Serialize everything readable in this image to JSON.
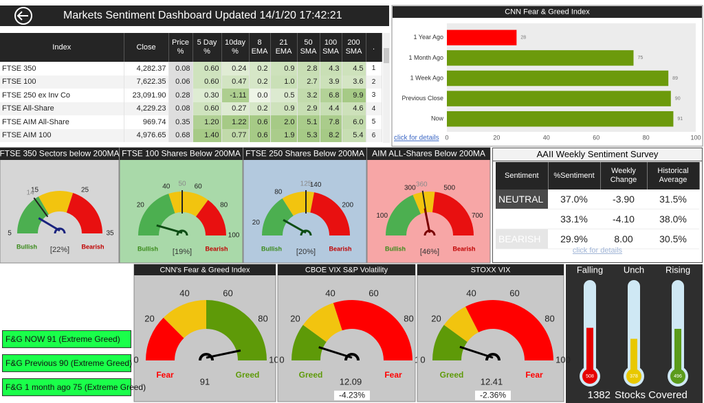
{
  "header": {
    "title": "Markets Sentiment Dashboard Updated  14/1/20 17:42:21"
  },
  "table": {
    "columns": [
      "Index",
      "Close",
      "Price %",
      "5 Day %",
      "10day %",
      "8 EMA",
      "21 EMA",
      "50 SMA",
      "100 SMA",
      "200 SMA",
      "."
    ],
    "rows": [
      [
        "FTSE 350",
        "4,282.37",
        "0.08",
        "0.60",
        "0.24",
        "0.2",
        "0.9",
        "2.8",
        "4.3",
        "4.5",
        "1"
      ],
      [
        "FTSE 100",
        "7,622.35",
        "0.06",
        "0.60",
        "0.47",
        "0.2",
        "1.0",
        "2.7",
        "3.9",
        "3.6",
        "2"
      ],
      [
        "FTSE 250 ex Inv Co",
        "23,091.90",
        "0.28",
        "0.30",
        "-1.11",
        "0.0",
        "0.5",
        "3.2",
        "6.8",
        "9.9",
        "3"
      ],
      [
        "FTSE All-Share",
        "4,229.23",
        "0.08",
        "0.60",
        "0.27",
        "0.2",
        "0.9",
        "2.9",
        "4.4",
        "4.6",
        "4"
      ],
      [
        "FTSE AIM All-Share",
        "969.74",
        "0.35",
        "1.20",
        "1.22",
        "0.6",
        "2.0",
        "5.1",
        "7.8",
        "6.0",
        "5"
      ],
      [
        "FTSE AIM 100",
        "4,976.65",
        "0.68",
        "1.40",
        "0.77",
        "0.6",
        "1.9",
        "5.3",
        "8.2",
        "5.4",
        "6"
      ]
    ]
  },
  "chart_data": [
    {
      "type": "bar",
      "title": "CNN Fear & Greed Index",
      "categories": [
        "1 Year Ago",
        "1 Month Ago",
        "1 Week Ago",
        "Previous Close",
        "Now"
      ],
      "values": [
        28,
        75,
        89,
        90,
        91
      ],
      "colors": [
        "#ff0000",
        "#6c9a0c",
        "#6c9a0c",
        "#6c9a0c",
        "#6c9a0c"
      ],
      "xlim": [
        0,
        100
      ],
      "xticks": [
        0,
        20,
        40,
        60,
        80,
        100
      ],
      "link": "click for details"
    },
    {
      "type": "gauge",
      "title": "FTSE 350 Sectors below 200MA",
      "ylim": [
        5,
        35
      ],
      "ticks": [
        5,
        15,
        25,
        35
      ],
      "value": 11,
      "target": 14,
      "bands": [
        {
          "to": 15,
          "color": "#4caf50"
        },
        {
          "to": 23,
          "color": "#f2c40f"
        },
        {
          "to": 35,
          "color": "#e81010"
        }
      ],
      "needle_color": "#1a237e",
      "low_label": "Bullish",
      "high_label": "Bearish",
      "note": "[22%]"
    },
    {
      "type": "gauge",
      "title": "FTSE 100  Shares Below 200MA",
      "ylim": [
        0,
        100
      ],
      "ticks": [
        20,
        40,
        60,
        80,
        100
      ],
      "value": 12,
      "target": 50,
      "bands": [
        {
          "to": 40,
          "color": "#4caf50"
        },
        {
          "to": 70,
          "color": "#f2c40f"
        },
        {
          "to": 100,
          "color": "#e81010"
        }
      ],
      "needle_color": "#0d4d14",
      "low_label": "Bullish",
      "high_label": "Bearish",
      "note": "[19%]"
    },
    {
      "type": "gauge",
      "title": "FTSE 250 Shares Below 200MA",
      "ylim": [
        0,
        250
      ],
      "ticks": [
        20,
        80,
        140,
        200
      ],
      "value": 48,
      "target": 125,
      "bands": [
        {
          "to": 80,
          "color": "#4caf50"
        },
        {
          "to": 140,
          "color": "#f2c40f"
        },
        {
          "to": 250,
          "color": "#e81010"
        }
      ],
      "needle_color": "#0d4d14",
      "low_label": "Bullish",
      "high_label": "Bearish",
      "note": "[20%]"
    },
    {
      "type": "gauge",
      "title": "AIM ALL-Shares Below 200MA",
      "ylim": [
        0,
        800
      ],
      "ticks": [
        100,
        300,
        500,
        700
      ],
      "value": 355,
      "target": 360,
      "bands": [
        {
          "to": 300,
          "color": "#4caf50"
        },
        {
          "to": 430,
          "color": "#f2c40f"
        },
        {
          "to": 800,
          "color": "#e81010"
        }
      ],
      "needle_color": "#7a0000",
      "low_label": "Bullish",
      "high_label": "Bearish",
      "note": "[46%]"
    },
    {
      "type": "gauge",
      "title": "CNN's Fear & Greed Index",
      "ylim": [
        0,
        100
      ],
      "ticks": [
        0,
        20,
        40,
        60,
        80,
        100
      ],
      "value": 91,
      "bands": [
        {
          "to": 25,
          "color": "#ff0000"
        },
        {
          "to": 50,
          "color": "#f2c40f"
        },
        {
          "to": 100,
          "color": "#5e9a08"
        }
      ],
      "needle_color": "#000000",
      "low_label": "Fear",
      "high_label": "Greed"
    },
    {
      "type": "gauge",
      "title": "CBOE VIX S&P Volatility",
      "ylim": [
        0,
        100
      ],
      "ticks": [
        0,
        20,
        40,
        60,
        80,
        100
      ],
      "value": 12.09,
      "bands": [
        {
          "to": 20,
          "color": "#5e9a08"
        },
        {
          "to": 40,
          "color": "#f2c40f"
        },
        {
          "to": 100,
          "color": "#ff0000"
        }
      ],
      "needle_color": "#000000",
      "low_label": "Greed",
      "high_label": "Fear",
      "change": "-4.23%"
    },
    {
      "type": "gauge",
      "title": "STOXX VIX",
      "ylim": [
        0,
        100
      ],
      "ticks": [
        0,
        20,
        40,
        60,
        80,
        100
      ],
      "value": 12.41,
      "bands": [
        {
          "to": 20,
          "color": "#5e9a08"
        },
        {
          "to": 35,
          "color": "#f2c40f"
        },
        {
          "to": 100,
          "color": "#ff0000"
        }
      ],
      "needle_color": "#000000",
      "low_label": "Greed",
      "high_label": "Fear",
      "change": "-2.36%"
    },
    {
      "type": "thermometer",
      "categories": [
        "Falling",
        "Unch",
        "Rising"
      ],
      "values": [
        508,
        378,
        496
      ],
      "colors": [
        "#e60000",
        "#e8c800",
        "#5b9b1b"
      ],
      "total": 1382,
      "total_label": "Stocks Covered"
    }
  ],
  "aaii": {
    "title": "AAII Weekly Sentiment Survey",
    "columns": [
      "Sentiment",
      "%Sentiment",
      "Weekly Change",
      "Historical Average"
    ],
    "rows": [
      [
        "NEUTRAL",
        "37.0%",
        "-3.90",
        "31.5%"
      ],
      [
        null,
        "33.1%",
        "-4.10",
        "38.0%"
      ],
      [
        "BEARISH",
        "29.9%",
        "8.00",
        "30.5%"
      ]
    ],
    "link": "click for details"
  },
  "fg_boxes": [
    "F&G NOW  91 (Extreme Greed)",
    "F&G Previous  90 (Extreme Greed)",
    "F&G 1 month ago  75 (Extreme Greed)"
  ]
}
